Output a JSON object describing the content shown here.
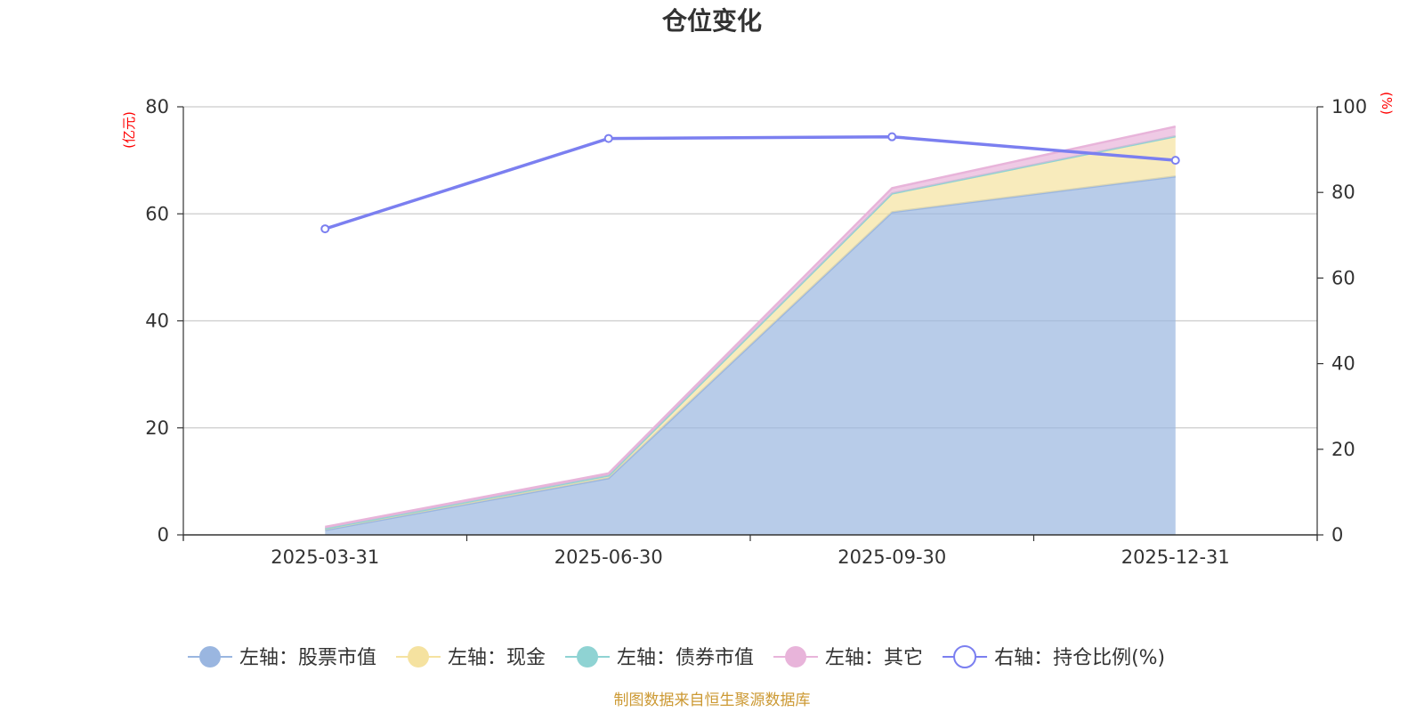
{
  "chart_data": {
    "type": "area",
    "title": "仓位变化",
    "left_axis_unit": "(亿元)",
    "right_axis_unit": "(%)",
    "categories": [
      "2025-03-31",
      "2025-06-30",
      "2025-09-30",
      "2025-12-31"
    ],
    "ylim_left": [
      0,
      80
    ],
    "yticks_left": [
      "0",
      "20",
      "40",
      "60",
      "80"
    ],
    "ylim_right": [
      0,
      100
    ],
    "yticks_right": [
      "0",
      "20",
      "40",
      "60",
      "80",
      "100"
    ],
    "stacked": true,
    "grid": true,
    "legend_position": "bottom",
    "series": [
      {
        "name": "左轴：股票市值",
        "axis": "left",
        "type": "area",
        "color": "#9ab6e0",
        "values": [
          0.9,
          10.6,
          60.3,
          67.0
        ]
      },
      {
        "name": "左轴：现金",
        "axis": "left",
        "type": "area",
        "color": "#f5e2a0",
        "values": [
          0.3,
          0.5,
          3.5,
          7.5
        ]
      },
      {
        "name": "左轴：债券市值",
        "axis": "left",
        "type": "area",
        "color": "#8fd3d3",
        "values": [
          0.0,
          0.0,
          0.0,
          0.0
        ]
      },
      {
        "name": "左轴：其它",
        "axis": "left",
        "type": "area",
        "color": "#e8b4da",
        "values": [
          0.3,
          0.4,
          1.0,
          1.8
        ]
      },
      {
        "name": "右轴：持仓比例(%)",
        "axis": "right",
        "type": "line",
        "color": "#7b7ff0",
        "values": [
          71.5,
          92.6,
          93.0,
          87.5
        ]
      }
    ]
  },
  "footer": "制图数据来自恒生聚源数据库"
}
